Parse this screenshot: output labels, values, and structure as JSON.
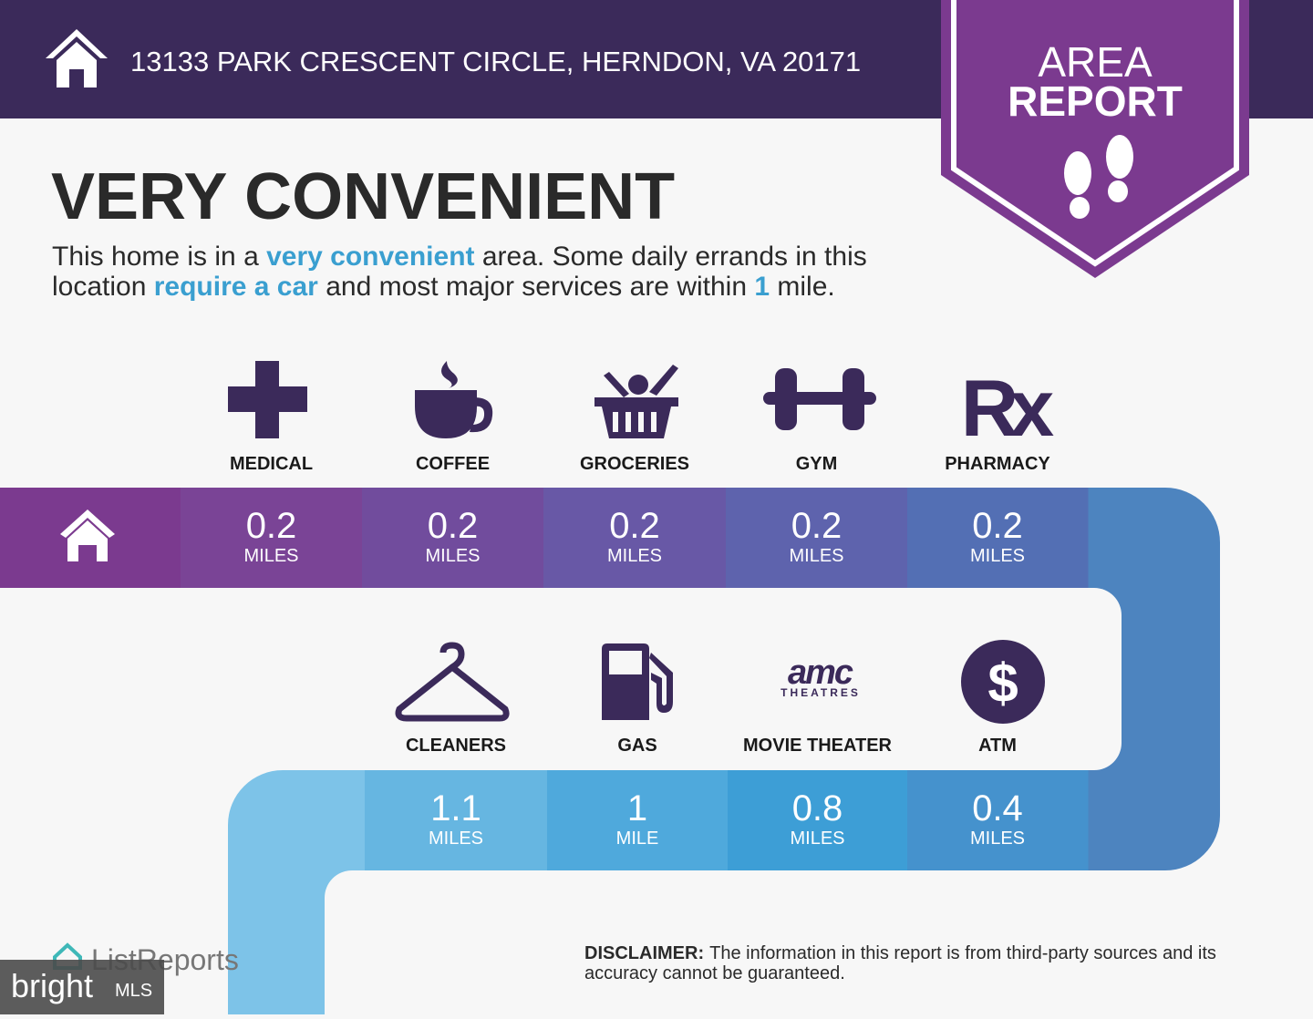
{
  "header": {
    "address": "13133 PARK CRESCENT CIRCLE, HERNDON, VA 20171"
  },
  "badge": {
    "lines": [
      "AREA",
      "REPORT"
    ]
  },
  "headline": "VERY CONVENIENT",
  "description": [
    [
      {
        "text": "This home is in a ",
        "emphasis": false
      },
      {
        "text": "very convenient",
        "emphasis": true
      },
      {
        "text": " area. Some daily errands in this",
        "emphasis": false
      }
    ],
    [
      {
        "text": "location ",
        "emphasis": false
      },
      {
        "text": "require a car",
        "emphasis": true
      },
      {
        "text": " and most major services are within ",
        "emphasis": false
      },
      {
        "text": "1",
        "emphasis": true
      },
      {
        "text": " mile.",
        "emphasis": false
      }
    ]
  ],
  "row1": [
    {
      "label": "MEDICAL",
      "distance": 0.2,
      "unit": "MILES",
      "color": "#7a4496"
    },
    {
      "label": "COFFEE",
      "distance": 0.2,
      "unit": "MILES",
      "color": "#714c9d"
    },
    {
      "label": "GROCERIES",
      "distance": 0.2,
      "unit": "MILES",
      "color": "#6858a6"
    },
    {
      "label": "GYM",
      "distance": 0.2,
      "unit": "MILES",
      "color": "#5e63ad"
    },
    {
      "label": "PHARMACY",
      "distance": 0.2,
      "unit": "MILES",
      "color": "#536fb4",
      "icon_text": "Rx"
    }
  ],
  "row2": [
    {
      "label": "CLEANERS",
      "distance": 1.1,
      "unit": "MILES",
      "color": "#66b6e1"
    },
    {
      "label": "GAS",
      "distance": 1,
      "unit": "MILE",
      "color": "#4fa9dc"
    },
    {
      "label": "MOVIE THEATER",
      "distance": 0.8,
      "unit": "MILES",
      "color": "#3d9ed6",
      "logo": {
        "main": "amc",
        "sub": "THEATRES"
      }
    },
    {
      "label": "ATM",
      "distance": 0.4,
      "unit": "MILES",
      "color": "#4592cd",
      "icon_text": "$"
    }
  ],
  "footer": {
    "logo": "ListReports",
    "disclaimer_label": "DISCLAIMER:",
    "disclaimer_text": "The information in this report is from third-party sources and its",
    "disclaimer_text_2": "accuracy cannot be guaranteed."
  },
  "watermark": {
    "brand": "bright",
    "suffix": "MLS"
  }
}
